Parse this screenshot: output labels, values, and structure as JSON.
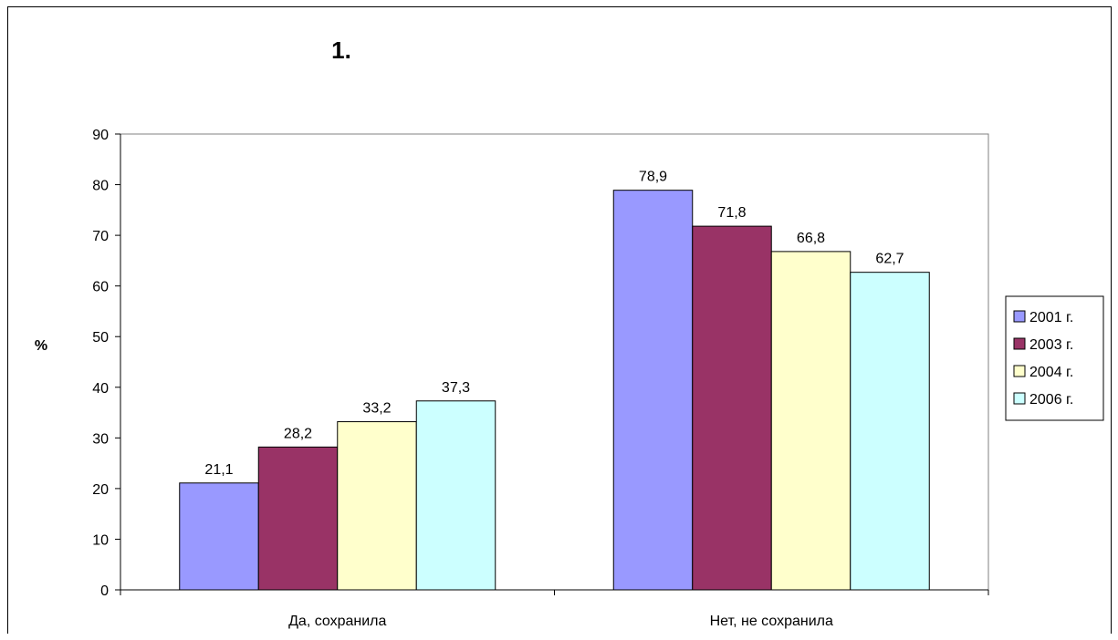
{
  "chart_data": {
    "type": "bar",
    "title": "1.",
    "xlabel": "",
    "ylabel": "%",
    "ylim": [
      0,
      90
    ],
    "yticks": [
      0,
      10,
      20,
      30,
      40,
      50,
      60,
      70,
      80,
      90
    ],
    "categories": [
      "Да, сохранила",
      "Нет, не сохранила"
    ],
    "series": [
      {
        "name": "2001 г.",
        "color": "#9999ff",
        "values": [
          21.1,
          78.9
        ],
        "labels": [
          "21,1",
          "78,9"
        ]
      },
      {
        "name": "2003 г.",
        "color": "#993366",
        "values": [
          28.2,
          71.8
        ],
        "labels": [
          "28,2",
          "71,8"
        ]
      },
      {
        "name": "2004 г.",
        "color": "#ffffcc",
        "values": [
          33.2,
          66.8
        ],
        "labels": [
          "33,2",
          "66,8"
        ]
      },
      {
        "name": "2006 г.",
        "color": "#ccffff",
        "values": [
          37.3,
          62.7
        ],
        "labels": [
          "37,3",
          "62,7"
        ]
      }
    ],
    "grid": false,
    "legend": "right"
  }
}
